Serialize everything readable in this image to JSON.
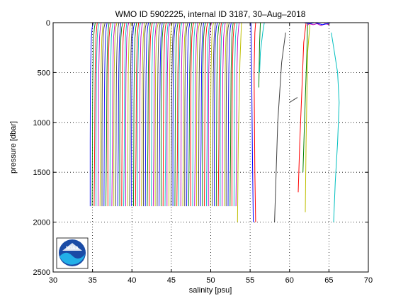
{
  "chart_data": {
    "type": "line",
    "title": "WMO ID 5902225, internal ID 3187, 30–Aug–2018",
    "xlabel": "salinity [psu]",
    "ylabel": "pressure [dbar]",
    "xlim": [
      30,
      70
    ],
    "ylim": [
      0,
      2500
    ],
    "y_reversed": true,
    "grid": "dotted",
    "x_ticks": [
      "30",
      "35",
      "40",
      "45",
      "50",
      "55",
      "60",
      "65",
      "70"
    ],
    "y_ticks": [
      "0",
      "500",
      "1000",
      "1500",
      "2000",
      "2500"
    ],
    "logo_text": "NOAA",
    "profile_colors": [
      "#0000ff",
      "#008000",
      "#ff0000",
      "#00bfbf",
      "#bf00bf",
      "#bfbf00",
      "#404040"
    ],
    "offset_profiles": {
      "count": 75,
      "first_offset_psu": 34.7,
      "offset_step_psu": 0.25,
      "max_pressure_dbar": 1840,
      "shape_psu": [
        [
          0,
          0.4
        ],
        [
          50,
          0.25
        ],
        [
          150,
          0.15
        ],
        [
          300,
          0.1
        ],
        [
          500,
          0.05
        ],
        [
          800,
          0.02
        ],
        [
          1200,
          0.0
        ],
        [
          1840,
          0.0
        ]
      ]
    },
    "series": [
      {
        "color": "#bfbf00",
        "points": [
          [
            53.9,
            0
          ],
          [
            53.7,
            400
          ],
          [
            53.5,
            1200
          ],
          [
            53.4,
            2000
          ]
        ]
      },
      {
        "color": "#0000ff",
        "points": [
          [
            55.1,
            0
          ],
          [
            55.2,
            600
          ],
          [
            55.3,
            1400
          ],
          [
            55.4,
            2000
          ]
        ]
      },
      {
        "color": "#ff0000",
        "points": [
          [
            55.7,
            0
          ],
          [
            55.6,
            100
          ],
          [
            55.5,
            500
          ],
          [
            55.6,
            1500
          ],
          [
            55.7,
            2000
          ]
        ]
      },
      {
        "color": "#008000",
        "points": [
          [
            56.3,
            0
          ],
          [
            56.2,
            200
          ],
          [
            56.1,
            650
          ]
        ]
      },
      {
        "color": "#00bfbf",
        "points": [
          [
            56.8,
            0
          ],
          [
            56.6,
            100
          ],
          [
            56.3,
            300
          ],
          [
            56.2,
            500
          ]
        ]
      },
      {
        "color": "#404040",
        "points": [
          [
            59.5,
            100
          ],
          [
            59.0,
            400
          ],
          [
            58.5,
            1000
          ],
          [
            58.1,
            2000
          ]
        ]
      },
      {
        "color": "#404040",
        "points": [
          [
            60.0,
            800
          ],
          [
            61.0,
            750
          ]
        ]
      },
      {
        "color": "#ff0000",
        "points": [
          [
            62.1,
            0
          ],
          [
            61.8,
            200
          ],
          [
            61.6,
            600
          ],
          [
            61.3,
            1200
          ],
          [
            61.1,
            1700
          ]
        ]
      },
      {
        "color": "#008000",
        "points": [
          [
            62.3,
            0
          ],
          [
            62.2,
            300
          ],
          [
            61.9,
            1000
          ],
          [
            61.7,
            1500
          ]
        ]
      },
      {
        "color": "#bfbf00",
        "points": [
          [
            62.6,
            0
          ],
          [
            62.5,
            100
          ],
          [
            62.3,
            300
          ],
          [
            62.1,
            1200
          ],
          [
            62.0,
            1900
          ]
        ]
      },
      {
        "color": "#bf00bf",
        "points": [
          [
            62.2,
            30
          ],
          [
            62.5,
            10
          ],
          [
            63.0,
            20
          ],
          [
            63.5,
            10
          ],
          [
            64.0,
            30
          ],
          [
            64.5,
            10
          ],
          [
            65.0,
            20
          ]
        ]
      },
      {
        "color": "#0000ff",
        "points": [
          [
            61.8,
            0
          ],
          [
            62.6,
            10
          ],
          [
            63.2,
            0
          ],
          [
            64.2,
            20
          ],
          [
            64.8,
            10
          ],
          [
            65.2,
            0
          ]
        ]
      },
      {
        "color": "#00bfbf",
        "points": [
          [
            65.3,
            100
          ],
          [
            65.7,
            300
          ],
          [
            66.1,
            500
          ],
          [
            66.3,
            800
          ],
          [
            66.1,
            1200
          ],
          [
            65.8,
            1600
          ],
          [
            65.6,
            2000
          ]
        ]
      }
    ]
  }
}
